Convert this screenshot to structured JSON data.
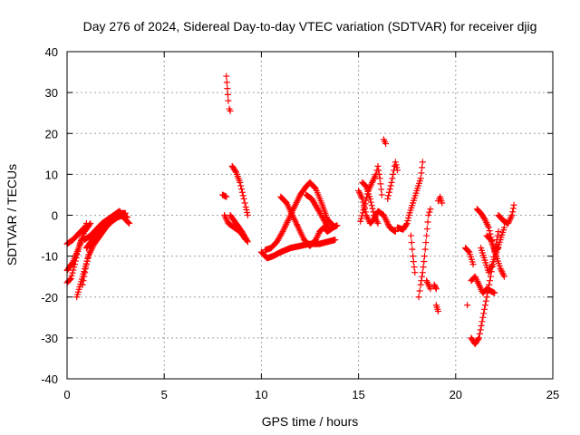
{
  "chart_data": {
    "type": "scatter",
    "title": "Day 276 of 2024, Sidereal Day-to-day VTEC variation (SDTVAR) for receiver djig",
    "xlabel": "GPS time / hours",
    "ylabel": "SDTVAR / TECUs",
    "xlim": [
      0,
      25
    ],
    "ylim": [
      -40,
      40
    ],
    "xticks": [
      0,
      5,
      10,
      15,
      20,
      25
    ],
    "yticks": [
      -40,
      -30,
      -20,
      -10,
      0,
      10,
      20,
      30,
      40
    ],
    "grid": true,
    "marker": "+",
    "color": "#ff0000",
    "segments": [
      {
        "points": [
          [
            0.0,
            -16.5
          ],
          [
            0.2,
            -15.5
          ],
          [
            0.4,
            -12.0
          ],
          [
            0.6,
            -8.0
          ],
          [
            0.8,
            -5.0
          ],
          [
            1.0,
            -2.0
          ]
        ]
      },
      {
        "points": [
          [
            0.0,
            -13.5
          ],
          [
            0.3,
            -11.5
          ],
          [
            0.6,
            -8.0
          ],
          [
            0.9,
            -4.0
          ],
          [
            1.2,
            -2.0
          ]
        ]
      },
      {
        "points": [
          [
            0.0,
            -7.0
          ],
          [
            0.3,
            -6.0
          ],
          [
            0.6,
            -4.5
          ],
          [
            0.9,
            -3.0
          ]
        ]
      },
      {
        "points": [
          [
            0.5,
            -20.0
          ],
          [
            0.8,
            -15.0
          ],
          [
            1.1,
            -10.0
          ],
          [
            1.4,
            -7.0
          ],
          [
            1.7,
            -5.0
          ],
          [
            2.0,
            -3.0
          ],
          [
            2.3,
            -1.5
          ],
          [
            2.6,
            -0.5
          ],
          [
            2.9,
            0.0
          ],
          [
            3.1,
            -0.5
          ]
        ]
      },
      {
        "points": [
          [
            0.8,
            -17.0
          ],
          [
            1.0,
            -12.0
          ],
          [
            1.2,
            -8.0
          ],
          [
            1.5,
            -5.0
          ],
          [
            1.8,
            -3.0
          ],
          [
            2.1,
            -1.5
          ],
          [
            2.4,
            -0.5
          ],
          [
            2.7,
            0.5
          ],
          [
            3.0,
            0.5
          ]
        ]
      },
      {
        "points": [
          [
            0.9,
            -6.0
          ],
          [
            1.2,
            -5.0
          ],
          [
            1.5,
            -3.5
          ],
          [
            1.8,
            -2.0
          ],
          [
            2.1,
            -1.0
          ],
          [
            2.4,
            0.0
          ],
          [
            2.7,
            1.0
          ],
          [
            3.0,
            -1.0
          ]
        ]
      },
      {
        "points": [
          [
            1.0,
            -8.0
          ],
          [
            1.3,
            -6.0
          ],
          [
            1.6,
            -4.5
          ],
          [
            1.9,
            -3.0
          ],
          [
            2.2,
            -1.5
          ],
          [
            2.5,
            0.0
          ],
          [
            2.8,
            0.0
          ],
          [
            3.2,
            -2.0
          ]
        ]
      },
      {
        "points": [
          [
            8.2,
            34.0
          ],
          [
            8.25,
            31.0
          ],
          [
            8.3,
            28.0
          ],
          [
            8.35,
            26.0
          ],
          [
            8.4,
            25.5
          ]
        ]
      },
      {
        "points": [
          [
            8.0,
            5.0
          ],
          [
            8.2,
            4.5
          ]
        ]
      },
      {
        "points": [
          [
            8.1,
            0.0
          ],
          [
            8.3,
            -2.0
          ],
          [
            8.6,
            -3.0
          ],
          [
            8.9,
            -4.0
          ],
          [
            9.2,
            -6.0
          ]
        ]
      },
      {
        "points": [
          [
            8.5,
            12.0
          ],
          [
            8.7,
            10.5
          ],
          [
            8.9,
            8.0
          ],
          [
            9.1,
            4.0
          ],
          [
            9.2,
            2.0
          ],
          [
            9.3,
            0.0
          ]
        ]
      },
      {
        "points": [
          [
            8.4,
            0.0
          ],
          [
            8.7,
            -2.0
          ],
          [
            9.0,
            -4.0
          ],
          [
            9.3,
            -6.5
          ]
        ]
      },
      {
        "points": [
          [
            10.0,
            -9.0
          ],
          [
            10.3,
            -10.5
          ],
          [
            10.6,
            -10.0
          ],
          [
            11.0,
            -9.0
          ],
          [
            11.5,
            -8.0
          ],
          [
            12.0,
            -7.5
          ],
          [
            12.5,
            -7.0
          ],
          [
            13.0,
            -7.0
          ],
          [
            13.4,
            -6.5
          ],
          [
            13.8,
            -6.0
          ]
        ]
      },
      {
        "points": [
          [
            10.2,
            -8.5
          ],
          [
            10.5,
            -8.0
          ],
          [
            10.8,
            -6.5
          ],
          [
            11.1,
            -4.0
          ],
          [
            11.4,
            -1.0
          ],
          [
            11.7,
            2.0
          ],
          [
            12.0,
            5.0
          ],
          [
            12.3,
            7.0
          ],
          [
            12.5,
            8.0
          ],
          [
            12.8,
            6.5
          ],
          [
            13.1,
            3.0
          ],
          [
            13.4,
            -1.0
          ],
          [
            13.7,
            -2.5
          ]
        ]
      },
      {
        "points": [
          [
            11.0,
            4.5
          ],
          [
            11.3,
            3.0
          ],
          [
            11.6,
            0.0
          ],
          [
            11.9,
            -3.0
          ],
          [
            12.2,
            -6.0
          ],
          [
            12.5,
            -7.5
          ],
          [
            12.8,
            -6.0
          ],
          [
            13.0,
            -4.0
          ],
          [
            13.2,
            -3.0
          ],
          [
            13.4,
            -4.0
          ],
          [
            13.7,
            -3.0
          ],
          [
            13.9,
            -2.5
          ]
        ]
      },
      {
        "points": [
          [
            12.3,
            5.0
          ],
          [
            12.6,
            4.0
          ],
          [
            12.9,
            1.5
          ],
          [
            13.2,
            -1.0
          ],
          [
            13.5,
            -3.5
          ]
        ]
      },
      {
        "points": [
          [
            15.0,
            6.0
          ],
          [
            15.2,
            4.0
          ],
          [
            15.4,
            0.0
          ],
          [
            15.6,
            -2.0
          ],
          [
            15.8,
            -1.0
          ],
          [
            16.0,
            1.0
          ],
          [
            16.3,
            0.0
          ],
          [
            16.6,
            -3.0
          ],
          [
            16.9,
            -4.0
          ]
        ]
      },
      {
        "points": [
          [
            15.1,
            -1.5
          ],
          [
            15.3,
            2.0
          ],
          [
            15.5,
            6.0
          ],
          [
            15.7,
            8.0
          ],
          [
            15.9,
            10.0
          ],
          [
            16.0,
            12.0
          ],
          [
            16.1,
            9.0
          ],
          [
            16.2,
            5.0
          ]
        ]
      },
      {
        "points": [
          [
            15.2,
            8.0
          ],
          [
            15.4,
            7.0
          ],
          [
            15.6,
            4.0
          ],
          [
            15.8,
            0.0
          ],
          [
            16.0,
            -2.0
          ]
        ]
      },
      {
        "points": [
          [
            16.3,
            18.5
          ],
          [
            16.4,
            17.5
          ]
        ]
      },
      {
        "points": [
          [
            16.5,
            4.0
          ],
          [
            16.7,
            8.0
          ],
          [
            16.9,
            13.0
          ],
          [
            17.0,
            11.0
          ]
        ]
      },
      {
        "points": [
          [
            17.0,
            -3.0
          ],
          [
            17.3,
            -3.5
          ],
          [
            17.5,
            -2.0
          ],
          [
            17.6,
            0.0
          ],
          [
            17.8,
            3.0
          ],
          [
            18.0,
            6.0
          ],
          [
            18.2,
            9.0
          ],
          [
            18.3,
            13.0
          ]
        ]
      },
      {
        "points": [
          [
            17.7,
            -5.0
          ],
          [
            17.8,
            -10.0
          ],
          [
            17.9,
            -14.0
          ]
        ]
      },
      {
        "points": [
          [
            18.1,
            -20.0
          ],
          [
            18.2,
            -17.0
          ],
          [
            18.3,
            -14.0
          ],
          [
            18.4,
            -10.0
          ],
          [
            18.5,
            -5.0
          ],
          [
            18.6,
            0.0
          ],
          [
            18.7,
            1.5
          ]
        ]
      },
      {
        "points": [
          [
            18.5,
            -16.0
          ],
          [
            18.7,
            -18.0
          ]
        ]
      },
      {
        "points": [
          [
            18.9,
            -17.0
          ],
          [
            19.0,
            -18.0
          ]
        ]
      },
      {
        "points": [
          [
            19.0,
            -22.0
          ],
          [
            19.1,
            -23.5
          ]
        ]
      },
      {
        "points": [
          [
            19.1,
            3.5
          ],
          [
            19.2,
            4.5
          ],
          [
            19.3,
            3.0
          ]
        ]
      },
      {
        "points": [
          [
            20.5,
            -8.0
          ],
          [
            20.7,
            -9.0
          ],
          [
            20.9,
            -12.0
          ]
        ]
      },
      {
        "points": [
          [
            20.6,
            -22.0
          ]
        ]
      },
      {
        "points": [
          [
            20.8,
            -30.0
          ],
          [
            21.0,
            -31.5
          ],
          [
            21.2,
            -30.0
          ],
          [
            21.4,
            -25.0
          ],
          [
            21.6,
            -20.0
          ],
          [
            21.8,
            -15.0
          ],
          [
            22.0,
            -9.0
          ],
          [
            22.2,
            -4.0
          ]
        ]
      },
      {
        "points": [
          [
            20.8,
            -16.0
          ],
          [
            21.0,
            -15.0
          ],
          [
            21.2,
            -17.0
          ],
          [
            21.4,
            -19.0
          ],
          [
            21.6,
            -18.0
          ],
          [
            21.8,
            -18.5
          ],
          [
            22.0,
            -19.0
          ]
        ]
      },
      {
        "points": [
          [
            21.1,
            1.5
          ],
          [
            21.3,
            0.5
          ],
          [
            21.5,
            -1.0
          ],
          [
            21.7,
            -3.0
          ],
          [
            21.9,
            -7.0
          ],
          [
            22.1,
            -10.0
          ],
          [
            22.3,
            -13.0
          ],
          [
            22.5,
            -15.0
          ]
        ]
      },
      {
        "points": [
          [
            21.3,
            -8.0
          ],
          [
            21.5,
            -11.0
          ],
          [
            21.7,
            -14.0
          ],
          [
            21.9,
            -12.0
          ],
          [
            22.1,
            -9.0
          ],
          [
            22.3,
            -6.0
          ],
          [
            22.5,
            -3.0
          ]
        ]
      },
      {
        "points": [
          [
            22.2,
            0.0
          ],
          [
            22.5,
            -1.5
          ],
          [
            22.7,
            -2.0
          ],
          [
            22.9,
            0.0
          ],
          [
            23.0,
            2.5
          ]
        ]
      },
      {
        "points": [
          [
            21.6,
            -5.0
          ],
          [
            21.8,
            -6.0
          ],
          [
            22.0,
            -8.5
          ],
          [
            22.2,
            -8.0
          ]
        ]
      }
    ]
  }
}
